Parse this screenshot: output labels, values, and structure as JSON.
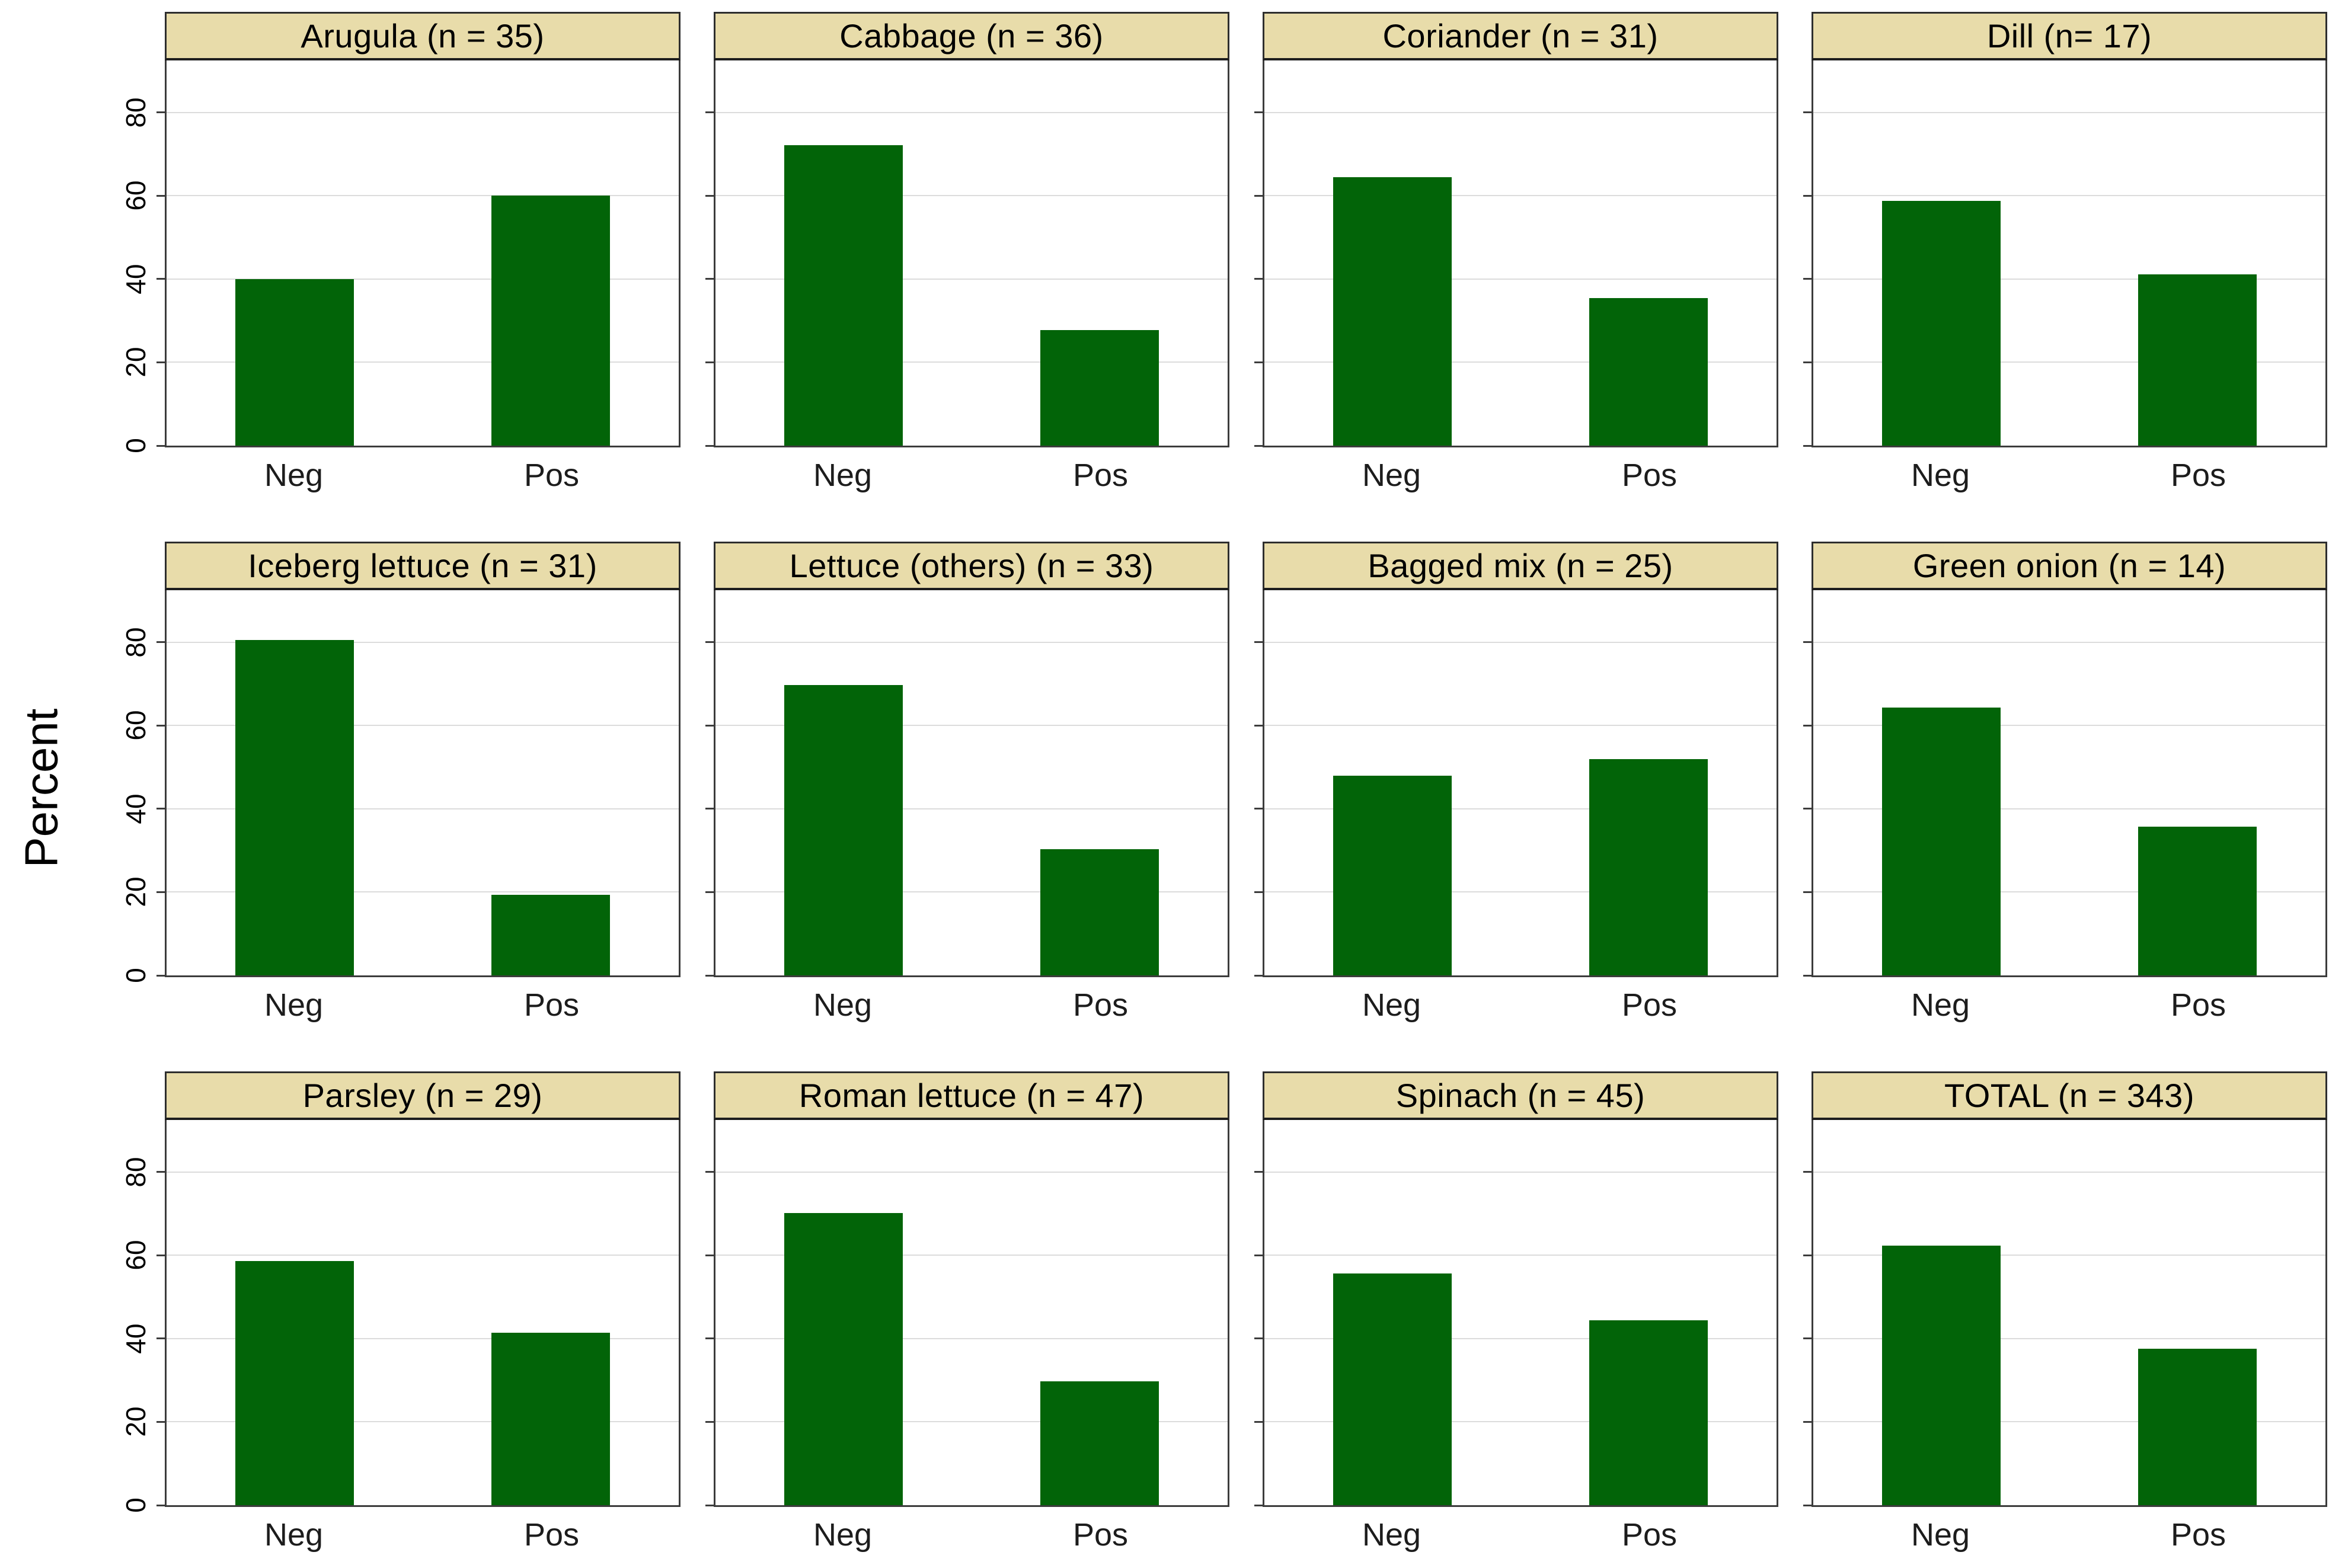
{
  "chart_data": {
    "type": "bar",
    "layout": {
      "rows": 3,
      "cols": 4,
      "grid": true,
      "legend": "none"
    },
    "ylabel": "Percent",
    "categories": [
      "Neg",
      "Pos"
    ],
    "yticks": [
      0,
      20,
      40,
      60,
      80
    ],
    "ylim": [
      0,
      92.5
    ],
    "panels": [
      {
        "title": "Arugula (n = 35)",
        "values": [
          40.0,
          60.0
        ]
      },
      {
        "title": "Cabbage (n = 36)",
        "values": [
          72.2,
          27.8
        ]
      },
      {
        "title": "Coriander (n = 31)",
        "values": [
          64.5,
          35.5
        ]
      },
      {
        "title": "Dill (n= 17)",
        "values": [
          58.8,
          41.2
        ]
      },
      {
        "title": "Iceberg lettuce (n = 31)",
        "values": [
          80.6,
          19.4
        ]
      },
      {
        "title": "Lettuce (others) (n = 33)",
        "values": [
          69.7,
          30.3
        ]
      },
      {
        "title": "Bagged mix (n = 25)",
        "values": [
          48.0,
          52.0
        ]
      },
      {
        "title": "Green onion (n = 14)",
        "values": [
          64.3,
          35.7
        ]
      },
      {
        "title": "Parsley (n = 29)",
        "values": [
          58.6,
          41.4
        ]
      },
      {
        "title": "Roman lettuce (n = 47)",
        "values": [
          70.2,
          29.8
        ]
      },
      {
        "title": "Spinach (n = 45)",
        "values": [
          55.6,
          44.4
        ]
      },
      {
        "title": "TOTAL (n = 343)",
        "values": [
          62.4,
          37.6
        ]
      }
    ],
    "colors": {
      "bar": "#026408",
      "header_fill": "#e8dcaa",
      "header_border": "#2e2e2e",
      "plot_border": "#3c3c3c",
      "gridline": "#dcdcdc",
      "text": "#000000"
    }
  }
}
